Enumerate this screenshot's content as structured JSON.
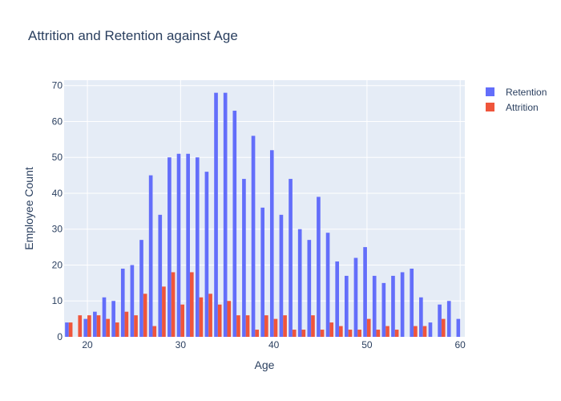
{
  "chart_data": {
    "type": "bar",
    "title": "Attrition and Retention against Age",
    "xlabel": "Age",
    "ylabel": "Employee Count",
    "xlim": [
      17.5,
      60.5
    ],
    "ylim": [
      0,
      71.5
    ],
    "x_ticks": [
      20,
      30,
      40,
      50,
      60
    ],
    "y_ticks": [
      0,
      10,
      20,
      30,
      40,
      50,
      60,
      70
    ],
    "grid": true,
    "legend_position": "top-right",
    "x": [
      18,
      19,
      20,
      21,
      22,
      23,
      24,
      25,
      26,
      27,
      28,
      29,
      30,
      31,
      32,
      33,
      34,
      35,
      36,
      37,
      38,
      39,
      40,
      41,
      42,
      43,
      44,
      45,
      46,
      47,
      48,
      49,
      50,
      51,
      52,
      53,
      54,
      55,
      56,
      57,
      58,
      59,
      60
    ],
    "series": [
      {
        "name": "Retention",
        "color": "#636efa",
        "values": [
          4,
          0,
          5,
          7,
          11,
          10,
          19,
          20,
          27,
          45,
          34,
          50,
          51,
          51,
          50,
          46,
          68,
          68,
          63,
          44,
          56,
          36,
          52,
          34,
          44,
          30,
          27,
          39,
          29,
          21,
          17,
          22,
          25,
          17,
          15,
          17,
          18,
          19,
          11,
          4,
          9,
          10,
          5
        ]
      },
      {
        "name": "Attrition",
        "color": "#ef553b",
        "values": [
          4,
          6,
          6,
          6,
          5,
          4,
          7,
          6,
          12,
          3,
          14,
          18,
          9,
          18,
          11,
          12,
          9,
          10,
          6,
          6,
          2,
          6,
          5,
          6,
          2,
          2,
          6,
          2,
          4,
          3,
          2,
          2,
          5,
          2,
          3,
          2,
          0,
          3,
          3,
          0,
          5,
          0,
          0
        ]
      }
    ]
  }
}
